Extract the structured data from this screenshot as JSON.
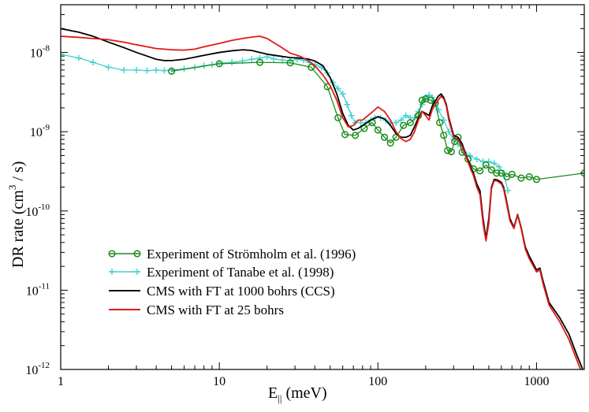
{
  "chart_data": {
    "type": "line",
    "title": "",
    "xlabel_main": "E",
    "xlabel_sub": "||",
    "xlabel_unit": " (meV)",
    "ylabel_main": "DR rate (cm",
    "ylabel_sup": "3",
    "ylabel_tail": " / s)",
    "x_scale": "log",
    "y_scale": "log",
    "xlim": [
      1,
      2000
    ],
    "ylim": [
      1e-12,
      4e-08
    ],
    "x_ticks": [
      {
        "value": 1,
        "label": "1"
      },
      {
        "value": 10,
        "label": "10"
      },
      {
        "value": 100,
        "label": "100"
      },
      {
        "value": 1000,
        "label": "1000"
      }
    ],
    "y_ticks": [
      {
        "value": 1e-12,
        "base": "10",
        "exp": "-12"
      },
      {
        "value": 1e-11,
        "base": "10",
        "exp": "-11"
      },
      {
        "value": 1e-10,
        "base": "10",
        "exp": "-10"
      },
      {
        "value": 1e-09,
        "base": "10",
        "exp": "-9"
      },
      {
        "value": 1e-08,
        "base": "10",
        "exp": "-8"
      }
    ],
    "grid": false,
    "legend_position": "bottom-left",
    "series": [
      {
        "name": "Experiment of Strömholm et al. (1996)",
        "color": "#1a8c1a",
        "marker": "circle",
        "x": [
          5,
          10,
          18,
          28,
          38,
          48,
          56,
          62,
          72,
          82,
          92,
          100,
          110,
          120,
          130,
          145,
          160,
          180,
          190,
          200,
          215,
          230,
          245,
          260,
          275,
          290,
          305,
          320,
          340,
          370,
          400,
          440,
          480,
          520,
          560,
          600,
          650,
          700,
          800,
          900,
          1000,
          2000
        ],
        "y": [
          5.8e-09,
          7.2e-09,
          7.5e-09,
          7.4e-09,
          6.5e-09,
          3.7e-09,
          1.5e-09,
          9.2e-10,
          9e-10,
          1.1e-09,
          1.3e-09,
          1.05e-09,
          8.5e-10,
          7.2e-10,
          8.5e-10,
          1.2e-09,
          1.3e-09,
          1.6e-09,
          2.5e-09,
          2.6e-09,
          2.5e-09,
          2.3e-09,
          1.3e-09,
          9e-10,
          5.8e-10,
          5.6e-10,
          7.5e-10,
          8.5e-10,
          5.5e-10,
          4.5e-10,
          3.4e-10,
          3.2e-10,
          3.8e-10,
          3.3e-10,
          3e-10,
          3e-10,
          2.7e-10,
          2.9e-10,
          2.6e-10,
          2.7e-10,
          2.5e-10,
          3e-10
        ]
      },
      {
        "name": "Experiment of Tanabe et al. (1998)",
        "color": "#40d0d0",
        "marker": "plus",
        "x": [
          1,
          1.3,
          1.6,
          2,
          2.5,
          3,
          3.5,
          4,
          4.5,
          5,
          6,
          7,
          8,
          9,
          10,
          12,
          14,
          16,
          18,
          20,
          22,
          25,
          28,
          31,
          34,
          37,
          40,
          44,
          48,
          52,
          56,
          60,
          64,
          68,
          72,
          78,
          84,
          90,
          96,
          104,
          112,
          120,
          130,
          140,
          150,
          160,
          170,
          180,
          190,
          200,
          210,
          220,
          230,
          240,
          260,
          280,
          300,
          320,
          350,
          380,
          420,
          460,
          500,
          540,
          580,
          620,
          660
        ],
        "y": [
          9.5e-09,
          8.5e-09,
          7.5e-09,
          6.5e-09,
          6e-09,
          6e-09,
          5.9e-09,
          6e-09,
          5.9e-09,
          6e-09,
          6.2e-09,
          6.5e-09,
          6.8e-09,
          7e-09,
          7.3e-09,
          7.5e-09,
          7.8e-09,
          8.2e-09,
          8.5e-09,
          8.8e-09,
          8.3e-09,
          8e-09,
          7.8e-09,
          8.2e-09,
          8e-09,
          7.5e-09,
          7e-09,
          6.5e-09,
          5.5e-09,
          4.2e-09,
          3.5e-09,
          3e-09,
          2.2e-09,
          1.6e-09,
          1.3e-09,
          1.3e-09,
          1.3e-09,
          1.4e-09,
          1.5e-09,
          1.5e-09,
          1.4e-09,
          1.3e-09,
          1.3e-09,
          1.4e-09,
          1.6e-09,
          1.5e-09,
          1.5e-09,
          1.8e-09,
          2.2e-09,
          2.7e-09,
          2.9e-09,
          2.7e-09,
          2.3e-09,
          1.9e-09,
          1.4e-09,
          1e-09,
          8e-10,
          7e-10,
          5.5e-10,
          5e-10,
          4.5e-10,
          4.2e-10,
          4.2e-10,
          4e-10,
          3.6e-10,
          3e-10,
          1.8e-10
        ]
      },
      {
        "name": "CMS with FT at 1000 bohrs (CCS)",
        "color": "#000000",
        "marker": "none",
        "x": [
          1,
          1.3,
          1.6,
          2,
          2.5,
          3,
          3.5,
          4,
          4.5,
          5,
          6,
          7,
          8,
          10,
          12,
          14,
          16,
          18,
          20,
          24,
          28,
          32,
          36,
          40,
          45,
          50,
          55,
          60,
          65,
          70,
          75,
          80,
          90,
          100,
          110,
          120,
          130,
          140,
          150,
          160,
          170,
          180,
          190,
          200,
          210,
          220,
          240,
          250,
          260,
          270,
          280,
          300,
          320,
          340,
          360,
          380,
          400,
          420,
          440,
          460,
          480,
          500,
          520,
          540,
          560,
          580,
          600,
          620,
          640,
          680,
          720,
          760,
          800,
          850,
          900,
          1000,
          1050,
          1100,
          1200,
          1400,
          1600,
          1800,
          2000
        ],
        "y": [
          2e-08,
          1.8e-08,
          1.6e-08,
          1.35e-08,
          1.15e-08,
          1e-08,
          9e-09,
          8.2e-09,
          7.9e-09,
          7.9e-09,
          8.2e-09,
          8.7e-09,
          9.2e-09,
          1e-08,
          1.05e-08,
          1.08e-08,
          1.06e-08,
          1e-08,
          9.5e-09,
          9e-09,
          8.6e-09,
          8.5e-09,
          8.3e-09,
          7.8e-09,
          6.8e-09,
          4.8e-09,
          3e-09,
          1.7e-09,
          1.2e-09,
          1.05e-09,
          1.1e-09,
          1.2e-09,
          1.4e-09,
          1.55e-09,
          1.45e-09,
          1.2e-09,
          9.5e-10,
          8.5e-10,
          8.5e-10,
          9e-10,
          1.15e-09,
          1.5e-09,
          1.8e-09,
          1.7e-09,
          1.6e-09,
          2.1e-09,
          2.8e-09,
          3e-09,
          2.7e-09,
          2.2e-09,
          1.5e-09,
          9e-10,
          8.5e-10,
          7e-10,
          5e-10,
          3.8e-10,
          3e-10,
          2.2e-10,
          1.8e-10,
          8e-11,
          4.5e-11,
          8e-11,
          2e-10,
          2.5e-10,
          2.48e-10,
          2.4e-10,
          2.3e-10,
          2e-10,
          1.5e-10,
          8e-11,
          6.2e-11,
          9e-11,
          6.2e-11,
          3.5e-11,
          2.7e-11,
          1.8e-11,
          1.9e-11,
          1.3e-11,
          7e-12,
          4.5e-12,
          2.8e-12,
          1.5e-12,
          9e-13
        ]
      },
      {
        "name": "CMS with FT at 25 bohrs",
        "color": "#e01a1a",
        "marker": "none",
        "x": [
          1,
          1.3,
          1.6,
          2,
          2.5,
          3,
          3.5,
          4,
          4.5,
          5,
          6,
          7,
          8,
          10,
          12,
          14,
          16,
          18,
          20,
          24,
          28,
          32,
          36,
          40,
          45,
          50,
          55,
          60,
          65,
          70,
          75,
          80,
          90,
          100,
          110,
          120,
          130,
          140,
          150,
          160,
          170,
          180,
          190,
          200,
          210,
          220,
          240,
          250,
          260,
          270,
          280,
          300,
          320,
          340,
          360,
          380,
          400,
          420,
          440,
          460,
          480,
          500,
          520,
          540,
          560,
          580,
          600,
          620,
          640,
          680,
          720,
          760,
          800,
          850,
          900,
          1000,
          1050,
          1100,
          1200,
          1400,
          1600,
          1800,
          2000
        ],
        "y": [
          1.6e-08,
          1.55e-08,
          1.5e-08,
          1.45e-08,
          1.35e-08,
          1.25e-08,
          1.18e-08,
          1.12e-08,
          1.1e-08,
          1.08e-08,
          1.07e-08,
          1.1e-08,
          1.18e-08,
          1.3e-08,
          1.42e-08,
          1.5e-08,
          1.56e-08,
          1.6e-08,
          1.5e-08,
          1.2e-08,
          9.8e-09,
          9e-09,
          8e-09,
          6.8e-09,
          5.2e-09,
          3.8e-09,
          2.5e-09,
          1.5e-09,
          1.15e-09,
          1.2e-09,
          1.4e-09,
          1.4e-09,
          1.7e-09,
          2.05e-09,
          1.8e-09,
          1.4e-09,
          1e-09,
          8.2e-10,
          7.5e-10,
          8e-10,
          1e-09,
          1.4e-09,
          1.8e-09,
          1.6e-09,
          1.4e-09,
          1.9e-09,
          2.5e-09,
          2.8e-09,
          2.6e-09,
          2.1e-09,
          1.4e-09,
          8.5e-10,
          8e-10,
          6.5e-10,
          4.8e-10,
          3.6e-10,
          2.8e-10,
          2e-10,
          1.6e-10,
          7e-11,
          4.2e-11,
          7e-11,
          1.9e-10,
          2.4e-10,
          2.4e-10,
          2.3e-10,
          2.2e-10,
          1.9e-10,
          1.4e-10,
          7.5e-11,
          6e-11,
          8.8e-11,
          6e-11,
          3.3e-11,
          2.5e-11,
          1.7e-11,
          1.8e-11,
          1.2e-11,
          6.5e-12,
          4e-12,
          2.4e-12,
          1.3e-12,
          7.5e-13
        ]
      }
    ]
  }
}
